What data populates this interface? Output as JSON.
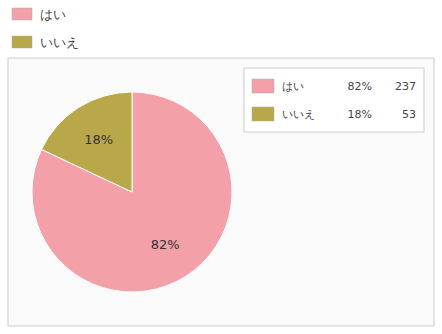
{
  "chart_data": {
    "type": "pie",
    "categories": [
      "はい",
      "いいえ"
    ],
    "values": [
      82,
      18
    ],
    "value_labels": [
      "82%",
      "18%"
    ],
    "counts": [
      237,
      53
    ],
    "colors": [
      "#f4a0a8",
      "#b8a84a"
    ],
    "data_labels": true,
    "legend": "upper right"
  }
}
